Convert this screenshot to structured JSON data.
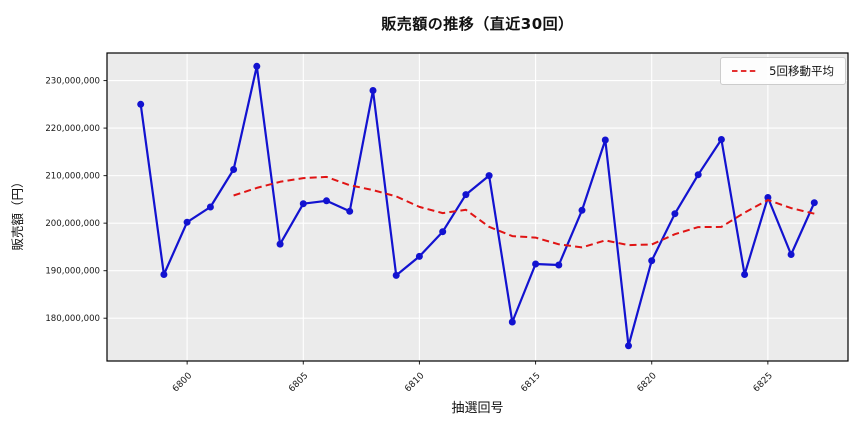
{
  "title": "販売額の推移（直近30回）",
  "axes": {
    "x_label": "抽選回号",
    "y_label": "販売額（円）"
  },
  "legend": {
    "label": "5回移動平均",
    "position": "upper right"
  },
  "colors": {
    "sales_line": "#1212d0",
    "moving_avg_line": "#e01414",
    "plot_background": "#ebebeb",
    "grid": "#ffffff",
    "spine": "#000000",
    "tick_text": "#1a1a1a"
  },
  "chart_data": {
    "type": "line",
    "x": [
      6798,
      6799,
      6800,
      6801,
      6802,
      6803,
      6804,
      6805,
      6806,
      6807,
      6808,
      6809,
      6810,
      6811,
      6812,
      6813,
      6814,
      6815,
      6816,
      6817,
      6818,
      6819,
      6820,
      6821,
      6822,
      6823,
      6824,
      6825,
      6826,
      6827
    ],
    "series": [
      {
        "name": "販売額",
        "color": "#1212d0",
        "marker": "circle",
        "style": "solid",
        "values": [
          225000000,
          189200000,
          200200000,
          203400000,
          211300000,
          233000000,
          195600000,
          204100000,
          204700000,
          202500000,
          227900000,
          189000000,
          193000000,
          198200000,
          206000000,
          210000000,
          179200000,
          191400000,
          191200000,
          202700000,
          217500000,
          174200000,
          192100000,
          202000000,
          210200000,
          217600000,
          189200000,
          205400000,
          193400000,
          204300000
        ]
      },
      {
        "name": "5回移動平均",
        "color": "#e01414",
        "marker": "none",
        "style": "dashed",
        "values": [
          null,
          null,
          null,
          null,
          205820000,
          207420000,
          208700000,
          209480000,
          209740000,
          207980000,
          206960000,
          205640000,
          203420000,
          202120000,
          202820000,
          199240000,
          197280000,
          196960000,
          195560000,
          194900000,
          196380000,
          195380000,
          195520000,
          197680000,
          199180000,
          199220000,
          202220000,
          204880000,
          203160000,
          201980000
        ]
      }
    ],
    "xticks": {
      "values": [
        6800,
        6805,
        6810,
        6815,
        6820,
        6825
      ],
      "labels": [
        "6800",
        "6805",
        "6810",
        "6815",
        "6820",
        "6825"
      ]
    },
    "yticks": {
      "values": [
        180000000,
        190000000,
        200000000,
        210000000,
        220000000,
        230000000
      ],
      "labels": [
        "180,000,000",
        "190,000,000",
        "200,000,000",
        "210,000,000",
        "220,000,000",
        "230,000,000"
      ]
    },
    "xlim": [
      6796.55,
      6828.45
    ],
    "ylim": [
      171000000,
      235800000
    ],
    "grid": true,
    "legend_position": "upper right",
    "title": "販売額の推移（直近30回）",
    "xlabel": "抽選回号",
    "ylabel": "販売額（円）"
  }
}
